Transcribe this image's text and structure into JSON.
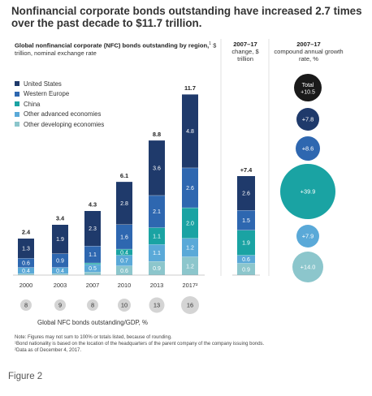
{
  "headline": "Nonfinancial corporate bonds outstanding have increased 2.7 times over the past decade to $11.7 trillion.",
  "panels": {
    "main_title_bold": "Global nonfinancial corporate (NFC) bonds outstanding by region,",
    "main_title_sup": "1",
    "main_title_rest": " $ trillion, nominal exchange rate",
    "change_title_bold": "2007–17",
    "change_title_rest": "change, $ trillion",
    "growth_title_bold": "2007–17",
    "growth_title_rest": "compound annual growth rate, %"
  },
  "colors": {
    "United States": "#1f3a6b",
    "Western Europe": "#2e67b0",
    "China": "#1aa3a3",
    "Other advanced economies": "#5aa9d8",
    "Other developing economies": "#8cc6cc",
    "total_circle": "#1a1a1a",
    "gdp_circle": "#d4d4d4"
  },
  "chart_data": [
    {
      "type": "bar",
      "stacked": true,
      "categories": [
        "2000",
        "2003",
        "2007",
        "2010",
        "2013",
        "2017²"
      ],
      "series": [
        {
          "name": "Other developing economies",
          "values": [
            0.1,
            0.1,
            0.2,
            0.6,
            0.9,
            1.2
          ]
        },
        {
          "name": "Other advanced economies",
          "values": [
            0.4,
            0.4,
            0.5,
            0.7,
            1.1,
            1.2
          ]
        },
        {
          "name": "China",
          "values": [
            0.0,
            0.0,
            0.1,
            0.4,
            1.1,
            2.0
          ]
        },
        {
          "name": "Western Europe",
          "values": [
            0.6,
            0.9,
            1.1,
            1.6,
            2.1,
            2.6
          ]
        },
        {
          "name": "United States",
          "values": [
            1.3,
            1.9,
            2.3,
            2.8,
            3.6,
            4.8
          ]
        }
      ],
      "segment_labels": [
        [
          "",
          "0.4",
          "",
          "0.6",
          "1.3"
        ],
        [
          "",
          "0.4",
          "",
          "0.9",
          "1.9"
        ],
        [
          "",
          "0.5",
          "",
          "1.1",
          "2.3"
        ],
        [
          "0.6",
          "0.7",
          "0.4",
          "1.6",
          "2.8"
        ],
        [
          "0.9",
          "1.1",
          "1.1",
          "2.1",
          "3.6"
        ],
        [
          "1.2",
          "1.2",
          "2.0",
          "2.6",
          "4.8"
        ]
      ],
      "totals": [
        "2.4",
        "3.4",
        "4.3",
        "6.1",
        "8.8",
        "11.7"
      ],
      "ylim": [
        0,
        11.7
      ],
      "legend": [
        "United States",
        "Western Europe",
        "China",
        "Other advanced economies",
        "Other developing economies"
      ],
      "legend_position": "top-left"
    },
    {
      "type": "bar",
      "stacked": true,
      "categories": [
        "2007–17 change"
      ],
      "series": [
        {
          "name": "Other developing economies",
          "values": [
            0.9
          ]
        },
        {
          "name": "Other advanced economies",
          "values": [
            0.6
          ]
        },
        {
          "name": "China",
          "values": [
            1.9
          ]
        },
        {
          "name": "Western Europe",
          "values": [
            1.5
          ]
        },
        {
          "name": "United States",
          "values": [
            2.6
          ]
        }
      ],
      "segment_labels": [
        [
          "0.9",
          "0.6",
          "1.9",
          "1.5",
          "2.6"
        ]
      ],
      "total_label": "+7.4"
    },
    {
      "type": "scatter",
      "title": "2007–17 compound annual growth rate, %",
      "points": [
        {
          "label": "Total",
          "value": "+10.5",
          "color_key": "total_circle"
        },
        {
          "label": "United States",
          "value": "+7.8",
          "color_key": "United States"
        },
        {
          "label": "Western Europe",
          "value": "+8.6",
          "color_key": "Western Europe"
        },
        {
          "label": "China",
          "value": "+39.9",
          "color_key": "China"
        },
        {
          "label": "Other advanced economies",
          "value": "+7.9",
          "color_key": "Other advanced economies"
        },
        {
          "label": "Other developing economies",
          "value": "+14.0",
          "color_key": "Other developing economies"
        }
      ]
    },
    {
      "type": "table",
      "title": "Global NFC bonds outstanding/GDP, %",
      "categories": [
        "2000",
        "2003",
        "2007",
        "2010",
        "2013",
        "2017²"
      ],
      "values": [
        "8",
        "9",
        "8",
        "10",
        "13",
        "16"
      ]
    }
  ],
  "notes": [
    "Note: Figures may not sum to 100% or totals listed, because of rounding.",
    "¹Bond nationality is based on the location of the headquarters of the parent company of the company issuing bonds.",
    "²Data as of December 4, 2017."
  ],
  "figure_label": "Figure 2"
}
